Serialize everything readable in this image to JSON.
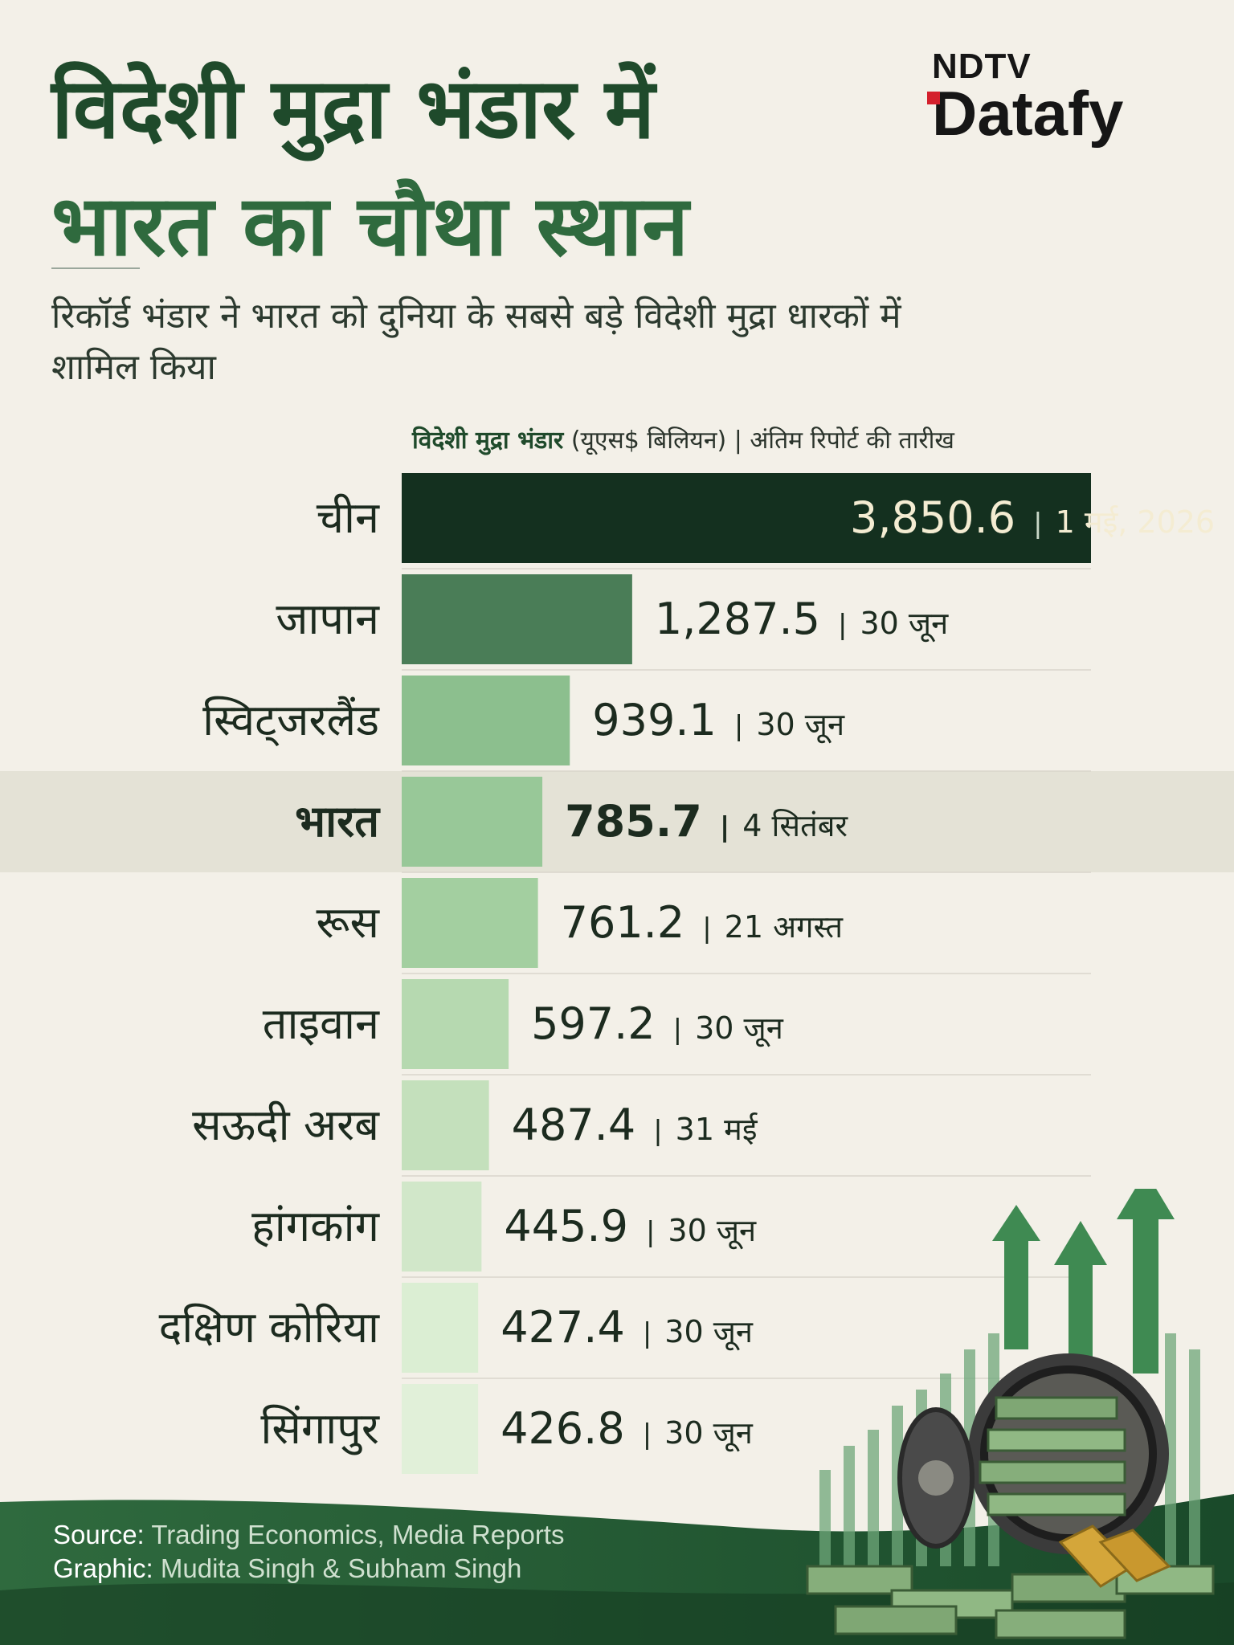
{
  "header": {
    "title_line1": "विदेशी मुद्रा भंडार में",
    "title_line2": "भारत का चौथा स्थान",
    "subtitle": "रिकॉर्ड भंडार ने भारत को दुनिया के सबसे बड़े विदेशी मुद्रा धारकों में शामिल किया"
  },
  "brand": {
    "line1": "NDTV",
    "line2": "Datafy",
    "accent": "#d4202c"
  },
  "column_header": {
    "metric": "विदेशी मुद्रा भंडार",
    "unit": "(यूएस$ बिलियन)",
    "separator": "|",
    "date_label": "अंतिम रिपोर्ट की तारीख"
  },
  "chart_data": {
    "type": "bar",
    "orientation": "horizontal",
    "highlight": "भारत",
    "categories": [
      "चीन",
      "जापान",
      "स्विट्जरलैंड",
      "भारत",
      "रूस",
      "ताइवान",
      "सऊदी अरब",
      "हांगकांग",
      "दक्षिण कोरिया",
      "सिंगापुर"
    ],
    "values": [
      3850.6,
      1287.5,
      939.1,
      785.7,
      761.2,
      597.2,
      487.4,
      445.9,
      427.4,
      426.8
    ],
    "value_labels": [
      "3,850.6",
      "1,287.5",
      "939.1",
      "785.7",
      "761.2",
      "597.2",
      "487.4",
      "445.9",
      "427.4",
      "426.8"
    ],
    "date_labels": [
      "1 मई, 2026",
      "30 जून",
      "30 जून",
      "4 सितंबर",
      "21 अगस्त",
      "30 जून",
      "31 मई",
      "30 जून",
      "30 जून",
      "30 जून"
    ],
    "separator": "|",
    "colors": [
      "#14301f",
      "#4a7d57",
      "#8cbf8e",
      "#98c898",
      "#a3cfa0",
      "#b6d9b0",
      "#c4e0bc",
      "#d1e7c9",
      "#dbeed3",
      "#e1f0d9"
    ],
    "highlight_color": "#e4e2d6",
    "gridlines": true
  },
  "footer": {
    "source_label": "Source:",
    "source_value": "Trading Economics, Media Reports",
    "graphic_label": "Graphic:",
    "graphic_value": "Mudita Singh & Subham Singh"
  }
}
